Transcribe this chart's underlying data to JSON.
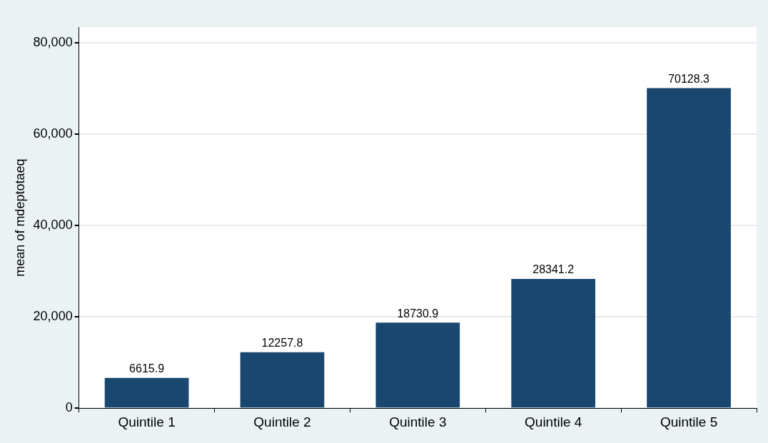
{
  "chart_data": {
    "type": "bar",
    "ylabel": "mean of mdeptotaeq",
    "categories": [
      "Quintile 1",
      "Quintile 2",
      "Quintile 3",
      "Quintile 4",
      "Quintile 5"
    ],
    "values": [
      6615.9,
      12257.8,
      18730.9,
      28341.2,
      70128.3
    ],
    "color": "#1a476f",
    "ylim": [
      0,
      83500
    ],
    "yticks": [
      {
        "value": 0,
        "label": "0"
      },
      {
        "value": 20000,
        "label": "20,000"
      },
      {
        "value": 40000,
        "label": "40,000"
      },
      {
        "value": 60000,
        "label": "60,000"
      },
      {
        "value": 80000,
        "label": "80,000"
      }
    ],
    "grid": "y",
    "data_labels": true,
    "legend": false
  }
}
